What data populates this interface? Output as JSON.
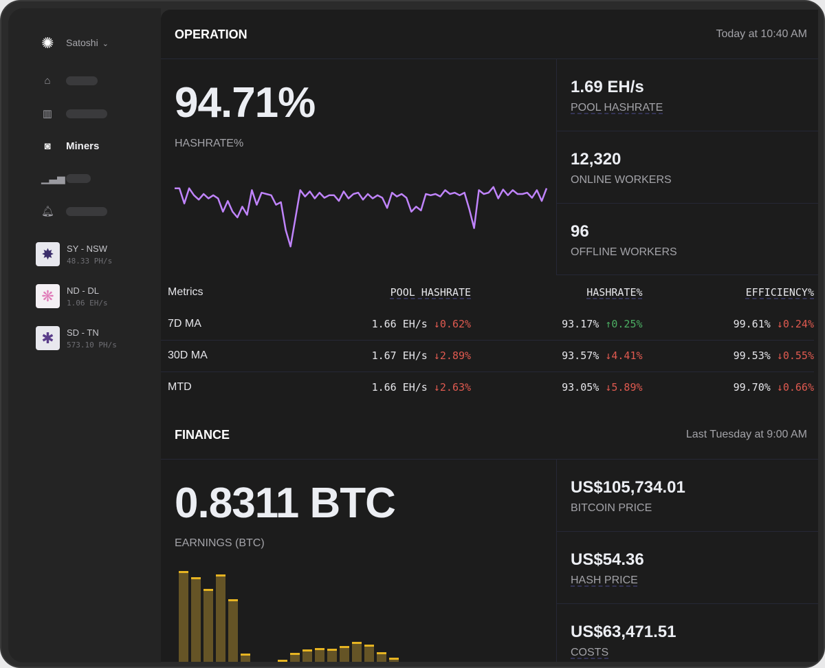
{
  "sidebar": {
    "user": "Satoshi",
    "active_item": "Miners",
    "nav": [
      {
        "icon": "home-icon"
      },
      {
        "icon": "building-icon"
      },
      {
        "icon": "miner-icon",
        "label": "Miners"
      },
      {
        "icon": "bar-chart-icon"
      },
      {
        "icon": "bell-icon"
      }
    ],
    "sites": [
      {
        "name": "SY - NSW",
        "rate": "48.33 PH/s",
        "color": "#3b2e6b"
      },
      {
        "name": "ND - DL",
        "rate": "1.06 EH/s",
        "color": "#e07ab8"
      },
      {
        "name": "SD - TN",
        "rate": "573.10 PH/s",
        "color": "#5a3d8a"
      }
    ]
  },
  "operation": {
    "title": "OPERATION",
    "time": "Today at 10:40 AM",
    "hashrate_pct": "94.71%",
    "hashrate_label": "HASHRATE%",
    "stats": [
      {
        "value": "1.69 EH/s",
        "label": "POOL HASHRATE"
      },
      {
        "value": "12,320",
        "label": "ONLINE WORKERS"
      },
      {
        "value": "96",
        "label": "OFFLINE WORKERS"
      }
    ],
    "table": {
      "headers": [
        "Metrics",
        "POOL HASHRATE",
        "HASHRATE%",
        "EFFICIENCY%"
      ],
      "rows": [
        {
          "metric": "7D MA",
          "pool": "1.66 EH/s",
          "pool_chg": "↓0.62%",
          "hr": "93.17%",
          "hr_chg": "↑0.25%",
          "eff": "99.61%",
          "eff_chg": "↓0.24%"
        },
        {
          "metric": "30D MA",
          "pool": "1.67 EH/s",
          "pool_chg": "↓2.89%",
          "hr": "93.57%",
          "hr_chg": "↓4.41%",
          "eff": "99.53%",
          "eff_chg": "↓0.55%"
        },
        {
          "metric": "MTD",
          "pool": "1.66 EH/s",
          "pool_chg": "↓2.63%",
          "hr": "93.05%",
          "hr_chg": "↓5.89%",
          "eff": "99.70%",
          "eff_chg": "↓0.66%"
        }
      ]
    }
  },
  "finance": {
    "title": "FINANCE",
    "time": "Last Tuesday at 9:00 AM",
    "earnings": "0.8311 BTC",
    "earnings_label": "EARNINGS (BTC)",
    "stats": [
      {
        "value": "US$105,734.01",
        "label": "BITCOIN PRICE"
      },
      {
        "value": "US$54.36",
        "label": "HASH PRICE"
      },
      {
        "value": "US$63,471.51",
        "label": "COSTS"
      }
    ]
  },
  "chart_data": [
    {
      "type": "line",
      "color": "#c084fc",
      "values": [
        96,
        96,
        72,
        96,
        85,
        78,
        87,
        80,
        85,
        80,
        59,
        76,
        59,
        50,
        67,
        54,
        93,
        70,
        89,
        87,
        85,
        70,
        74,
        30,
        4,
        48,
        93,
        83,
        91,
        80,
        89,
        81,
        85,
        85,
        76,
        91,
        80,
        87,
        89,
        78,
        87,
        80,
        85,
        81,
        65,
        89,
        83,
        87,
        81,
        59,
        67,
        61,
        87,
        85,
        87,
        83,
        93,
        87,
        89,
        85,
        89,
        63,
        33,
        93,
        87,
        89,
        98,
        80,
        94,
        85,
        93,
        87,
        87,
        89,
        81,
        93,
        76,
        96
      ]
    },
    {
      "type": "bar",
      "color": "#e6b422",
      "values": [
        132,
        123,
        106,
        127,
        91,
        12,
        0,
        0,
        3,
        13,
        18,
        20,
        19,
        23,
        29,
        25,
        14,
        6
      ]
    }
  ]
}
